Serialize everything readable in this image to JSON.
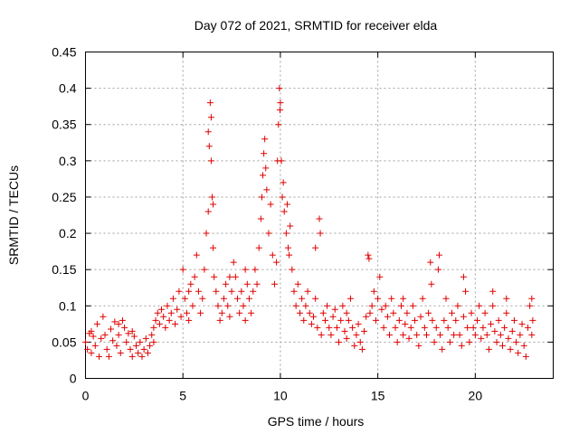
{
  "chart_data": {
    "type": "scatter",
    "title": "Day 072 of 2021, SRMTID for receiver elda",
    "xlabel": "GPS time / hours",
    "ylabel": "SRMTID / TECUs",
    "xlim": [
      0,
      24
    ],
    "ylim": [
      0,
      0.45
    ],
    "x_ticks": [
      "0",
      "5",
      "10",
      "15",
      "20"
    ],
    "y_ticks": [
      "0",
      "0.05",
      "0.1",
      "0.15",
      "0.2",
      "0.25",
      "0.3",
      "0.35",
      "0.4",
      "0.45"
    ],
    "marker": "+",
    "color": "#e00000",
    "grid": true,
    "series": [
      {
        "name": "elda",
        "points": [
          [
            0.0,
            0.05
          ],
          [
            0.1,
            0.04
          ],
          [
            0.2,
            0.062
          ],
          [
            0.3,
            0.035
          ],
          [
            0.4,
            0.058
          ],
          [
            0.5,
            0.045
          ],
          [
            0.6,
            0.075
          ],
          [
            0.7,
            0.03
          ],
          [
            0.8,
            0.055
          ],
          [
            0.9,
            0.085
          ],
          [
            1.0,
            0.06
          ],
          [
            1.1,
            0.04
          ],
          [
            1.2,
            0.03
          ],
          [
            1.3,
            0.068
          ],
          [
            1.4,
            0.052
          ],
          [
            1.5,
            0.078
          ],
          [
            1.6,
            0.045
          ],
          [
            1.7,
            0.06
          ],
          [
            1.8,
            0.035
          ],
          [
            1.9,
            0.08
          ],
          [
            2.0,
            0.07
          ],
          [
            2.1,
            0.05
          ],
          [
            2.2,
            0.062
          ],
          [
            2.3,
            0.04
          ],
          [
            2.4,
            0.03
          ],
          [
            2.5,
            0.058
          ],
          [
            2.6,
            0.045
          ],
          [
            2.7,
            0.035
          ],
          [
            2.8,
            0.05
          ],
          [
            2.9,
            0.03
          ],
          [
            3.0,
            0.04
          ],
          [
            3.1,
            0.055
          ],
          [
            3.2,
            0.035
          ],
          [
            3.3,
            0.045
          ],
          [
            3.4,
            0.06
          ],
          [
            3.5,
            0.07
          ],
          [
            3.6,
            0.08
          ],
          [
            3.7,
            0.09
          ],
          [
            3.8,
            0.075
          ],
          [
            3.9,
            0.095
          ],
          [
            4.0,
            0.085
          ],
          [
            4.1,
            0.07
          ],
          [
            4.2,
            0.1
          ],
          [
            4.3,
            0.08
          ],
          [
            4.4,
            0.09
          ],
          [
            4.5,
            0.11
          ],
          [
            4.6,
            0.075
          ],
          [
            4.7,
            0.095
          ],
          [
            4.8,
            0.12
          ],
          [
            4.9,
            0.085
          ],
          [
            5.0,
            0.15
          ],
          [
            5.1,
            0.11
          ],
          [
            5.2,
            0.09
          ],
          [
            5.3,
            0.08
          ],
          [
            5.4,
            0.13
          ],
          [
            5.5,
            0.1
          ],
          [
            5.6,
            0.14
          ],
          [
            5.7,
            0.17
          ],
          [
            5.8,
            0.12
          ],
          [
            5.9,
            0.09
          ],
          [
            6.0,
            0.11
          ],
          [
            6.1,
            0.15
          ],
          [
            6.2,
            0.2
          ],
          [
            6.3,
            0.23
          ],
          [
            6.35,
            0.32
          ],
          [
            6.4,
            0.38
          ],
          [
            6.45,
            0.36
          ],
          [
            6.5,
            0.25
          ],
          [
            6.55,
            0.18
          ],
          [
            6.6,
            0.14
          ],
          [
            6.7,
            0.12
          ],
          [
            6.8,
            0.1
          ],
          [
            6.9,
            0.08
          ],
          [
            7.0,
            0.09
          ],
          [
            7.1,
            0.11
          ],
          [
            7.2,
            0.13
          ],
          [
            7.3,
            0.1
          ],
          [
            7.4,
            0.085
          ],
          [
            7.5,
            0.12
          ],
          [
            7.6,
            0.16
          ],
          [
            7.7,
            0.14
          ],
          [
            7.8,
            0.11
          ],
          [
            7.9,
            0.09
          ],
          [
            8.0,
            0.12
          ],
          [
            8.1,
            0.1
          ],
          [
            8.2,
            0.08
          ],
          [
            8.3,
            0.13
          ],
          [
            8.4,
            0.11
          ],
          [
            8.5,
            0.09
          ],
          [
            8.6,
            0.12
          ],
          [
            8.7,
            0.15
          ],
          [
            8.8,
            0.13
          ],
          [
            8.9,
            0.18
          ],
          [
            9.0,
            0.22
          ],
          [
            9.1,
            0.28
          ],
          [
            9.2,
            0.33
          ],
          [
            9.3,
            0.26
          ],
          [
            9.4,
            0.2
          ],
          [
            9.5,
            0.24
          ],
          [
            9.6,
            0.17
          ],
          [
            9.7,
            0.13
          ],
          [
            9.8,
            0.16
          ],
          [
            9.9,
            0.35
          ],
          [
            9.95,
            0.4
          ],
          [
            10.0,
            0.38
          ],
          [
            10.05,
            0.3
          ],
          [
            10.1,
            0.25
          ],
          [
            10.2,
            0.23
          ],
          [
            10.3,
            0.2
          ],
          [
            10.4,
            0.18
          ],
          [
            10.5,
            0.21
          ],
          [
            10.6,
            0.15
          ],
          [
            10.7,
            0.12
          ],
          [
            10.8,
            0.1
          ],
          [
            10.9,
            0.13
          ],
          [
            11.0,
            0.09
          ],
          [
            11.1,
            0.11
          ],
          [
            11.2,
            0.08
          ],
          [
            11.3,
            0.1
          ],
          [
            11.4,
            0.12
          ],
          [
            11.5,
            0.09
          ],
          [
            11.6,
            0.075
          ],
          [
            11.7,
            0.085
          ],
          [
            11.8,
            0.11
          ],
          [
            11.9,
            0.07
          ],
          [
            12.0,
            0.22
          ],
          [
            12.1,
            0.06
          ],
          [
            12.2,
            0.09
          ],
          [
            12.3,
            0.08
          ],
          [
            12.4,
            0.1
          ],
          [
            12.5,
            0.07
          ],
          [
            12.6,
            0.06
          ],
          [
            12.7,
            0.085
          ],
          [
            12.8,
            0.095
          ],
          [
            12.9,
            0.07
          ],
          [
            13.0,
            0.05
          ],
          [
            13.1,
            0.08
          ],
          [
            13.2,
            0.1
          ],
          [
            13.3,
            0.065
          ],
          [
            13.4,
            0.055
          ],
          [
            13.5,
            0.08
          ],
          [
            13.6,
            0.11
          ],
          [
            13.7,
            0.07
          ],
          [
            13.8,
            0.045
          ],
          [
            13.9,
            0.06
          ],
          [
            14.0,
            0.075
          ],
          [
            14.1,
            0.05
          ],
          [
            14.2,
            0.04
          ],
          [
            14.3,
            0.065
          ],
          [
            14.4,
            0.085
          ],
          [
            14.5,
            0.17
          ],
          [
            14.6,
            0.09
          ],
          [
            14.7,
            0.1
          ],
          [
            14.8,
            0.12
          ],
          [
            14.9,
            0.08
          ],
          [
            15.0,
            0.11
          ],
          [
            15.1,
            0.14
          ],
          [
            15.2,
            0.095
          ],
          [
            15.3,
            0.07
          ],
          [
            15.4,
            0.1
          ],
          [
            15.5,
            0.085
          ],
          [
            15.6,
            0.06
          ],
          [
            15.7,
            0.11
          ],
          [
            15.8,
            0.09
          ],
          [
            15.9,
            0.07
          ],
          [
            16.0,
            0.05
          ],
          [
            16.1,
            0.08
          ],
          [
            16.2,
            0.1
          ],
          [
            16.3,
            0.06
          ],
          [
            16.4,
            0.075
          ],
          [
            16.5,
            0.09
          ],
          [
            16.6,
            0.055
          ],
          [
            16.7,
            0.07
          ],
          [
            16.8,
            0.1
          ],
          [
            16.9,
            0.08
          ],
          [
            17.0,
            0.06
          ],
          [
            17.1,
            0.045
          ],
          [
            17.2,
            0.085
          ],
          [
            17.3,
            0.11
          ],
          [
            17.4,
            0.07
          ],
          [
            17.5,
            0.06
          ],
          [
            17.6,
            0.09
          ],
          [
            17.7,
            0.16
          ],
          [
            17.8,
            0.08
          ],
          [
            17.9,
            0.05
          ],
          [
            18.0,
            0.07
          ],
          [
            18.1,
            0.15
          ],
          [
            18.2,
            0.06
          ],
          [
            18.3,
            0.04
          ],
          [
            18.4,
            0.08
          ],
          [
            18.5,
            0.11
          ],
          [
            18.6,
            0.07
          ],
          [
            18.7,
            0.05
          ],
          [
            18.8,
            0.09
          ],
          [
            18.9,
            0.06
          ],
          [
            19.0,
            0.08
          ],
          [
            19.1,
            0.1
          ],
          [
            19.2,
            0.06
          ],
          [
            19.3,
            0.045
          ],
          [
            19.4,
            0.085
          ],
          [
            19.5,
            0.12
          ],
          [
            19.6,
            0.07
          ],
          [
            19.7,
            0.05
          ],
          [
            19.8,
            0.09
          ],
          [
            19.9,
            0.07
          ],
          [
            20.0,
            0.06
          ],
          [
            20.1,
            0.08
          ],
          [
            20.2,
            0.1
          ],
          [
            20.3,
            0.055
          ],
          [
            20.4,
            0.07
          ],
          [
            20.5,
            0.09
          ],
          [
            20.6,
            0.06
          ],
          [
            20.7,
            0.04
          ],
          [
            20.8,
            0.075
          ],
          [
            20.9,
            0.1
          ],
          [
            21.0,
            0.065
          ],
          [
            21.1,
            0.05
          ],
          [
            21.2,
            0.08
          ],
          [
            21.3,
            0.06
          ],
          [
            21.4,
            0.045
          ],
          [
            21.5,
            0.07
          ],
          [
            21.6,
            0.09
          ],
          [
            21.7,
            0.055
          ],
          [
            21.8,
            0.04
          ],
          [
            21.9,
            0.065
          ],
          [
            22.0,
            0.08
          ],
          [
            22.1,
            0.05
          ],
          [
            22.2,
            0.035
          ],
          [
            22.3,
            0.06
          ],
          [
            22.4,
            0.075
          ],
          [
            22.5,
            0.045
          ],
          [
            22.6,
            0.03
          ],
          [
            22.7,
            0.07
          ],
          [
            22.8,
            0.1
          ],
          [
            22.9,
            0.06
          ],
          [
            0.3,
            0.065
          ],
          [
            1.7,
            0.075
          ],
          [
            2.4,
            0.065
          ],
          [
            3.5,
            0.05
          ],
          [
            5.3,
            0.12
          ],
          [
            6.3,
            0.34
          ],
          [
            6.45,
            0.3
          ],
          [
            6.55,
            0.24
          ],
          [
            7.4,
            0.14
          ],
          [
            8.2,
            0.15
          ],
          [
            9.05,
            0.25
          ],
          [
            9.15,
            0.31
          ],
          [
            9.25,
            0.29
          ],
          [
            9.85,
            0.3
          ],
          [
            9.98,
            0.37
          ],
          [
            10.15,
            0.27
          ],
          [
            10.35,
            0.24
          ],
          [
            10.45,
            0.17
          ],
          [
            11.8,
            0.18
          ],
          [
            12.05,
            0.2
          ],
          [
            13.4,
            0.09
          ],
          [
            14.55,
            0.165
          ],
          [
            16.3,
            0.11
          ],
          [
            17.75,
            0.13
          ],
          [
            18.15,
            0.17
          ],
          [
            19.4,
            0.14
          ],
          [
            20.9,
            0.12
          ],
          [
            21.6,
            0.11
          ],
          [
            22.9,
            0.11
          ],
          [
            22.95,
            0.08
          ]
        ]
      }
    ]
  }
}
